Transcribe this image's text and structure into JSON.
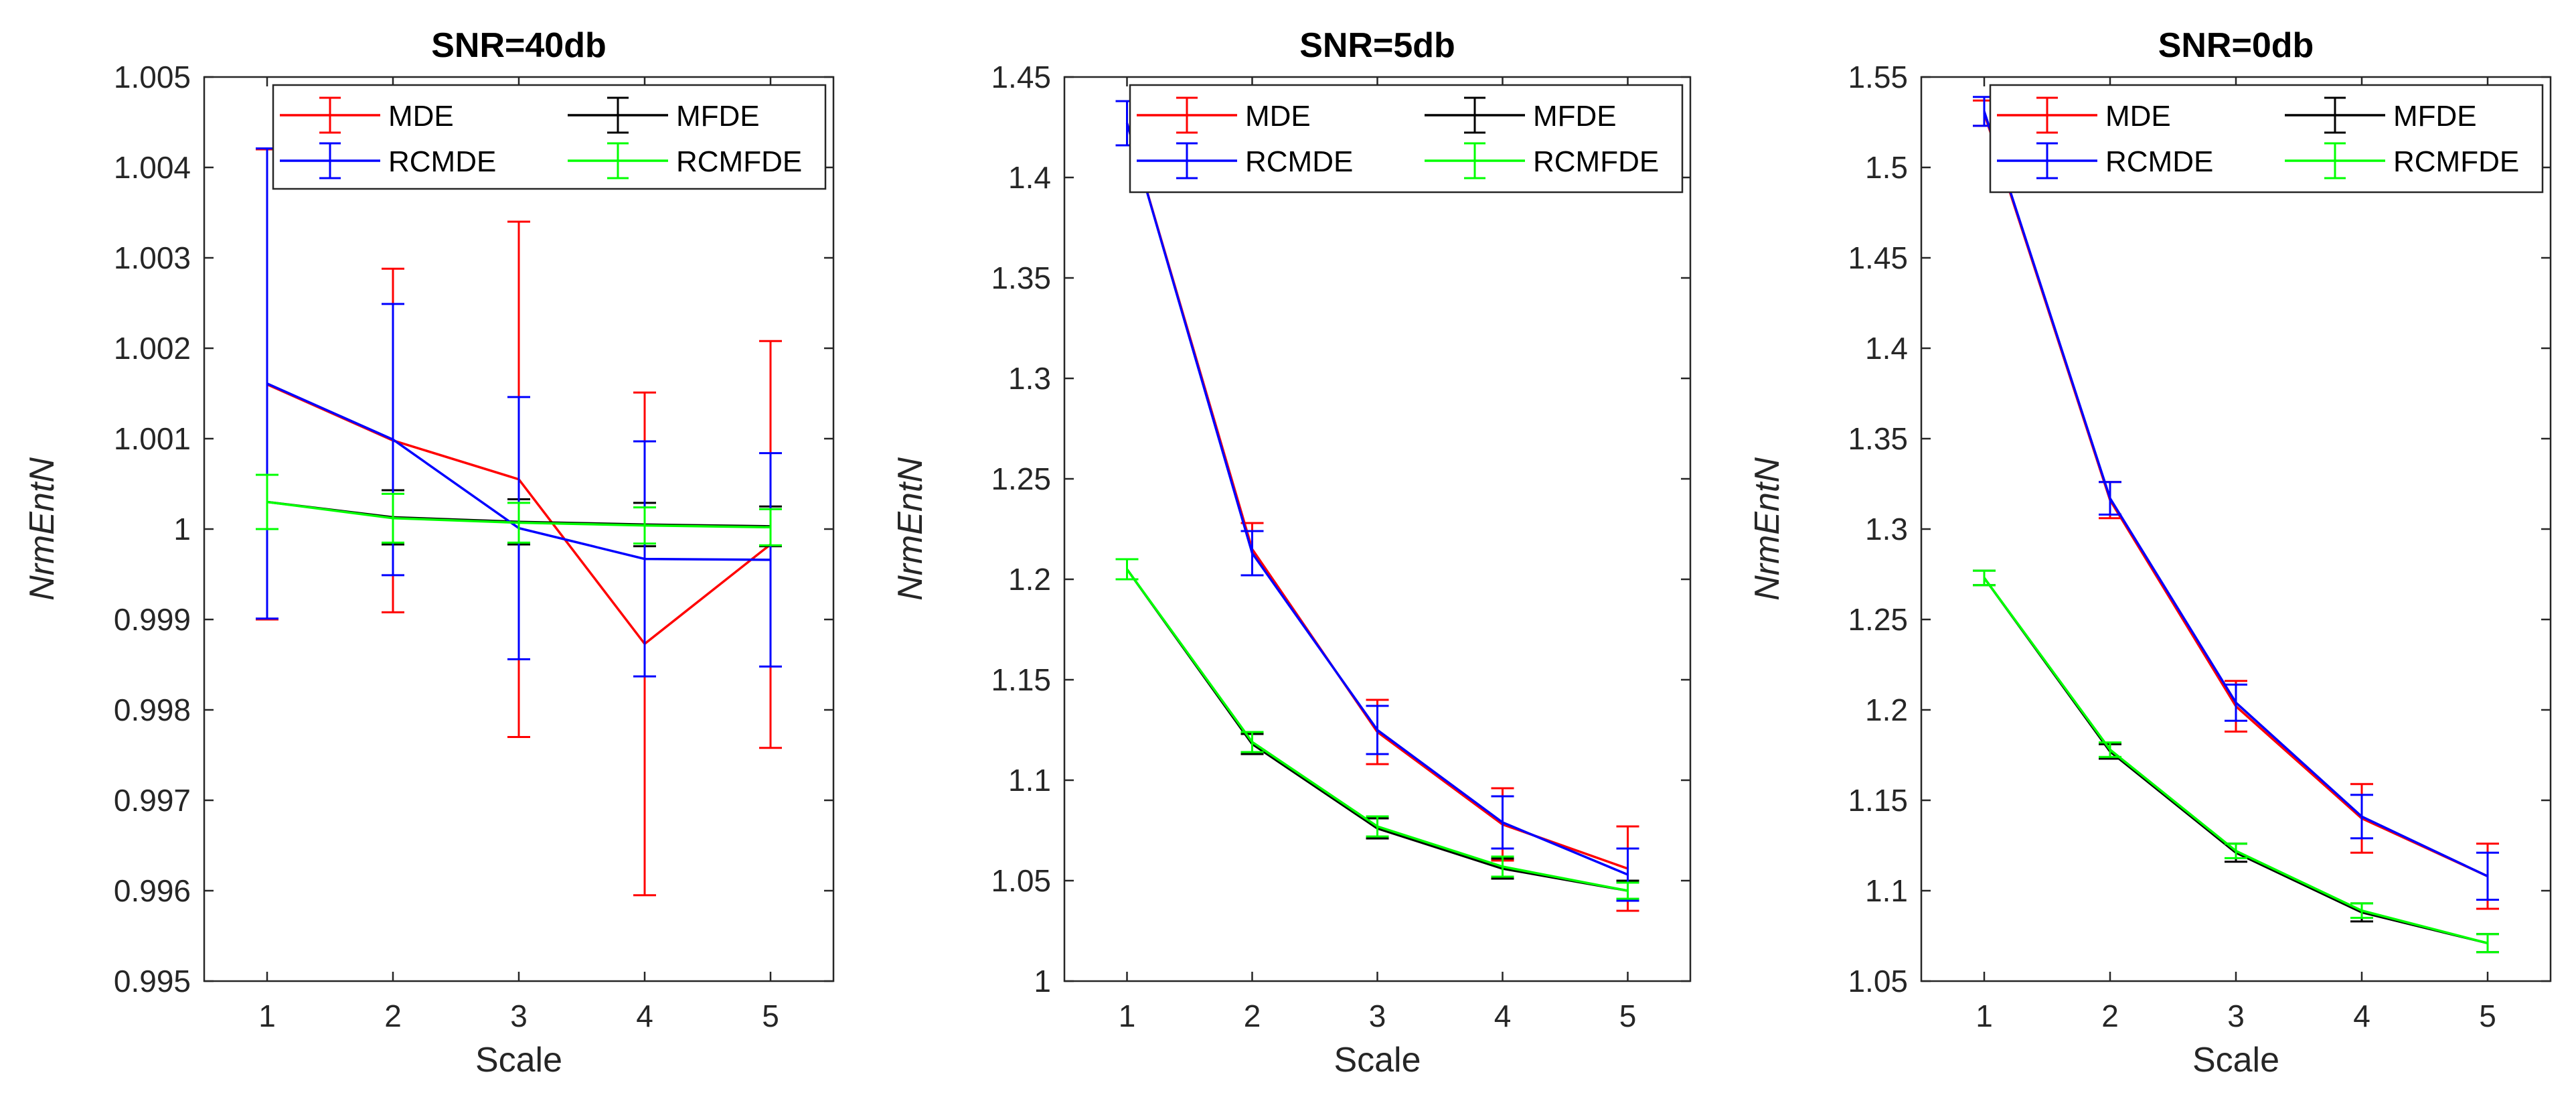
{
  "chart_data": [
    {
      "type": "line",
      "title": "SNR=40db",
      "xlabel": "Scale",
      "ylabel": "NrmEntN",
      "x": [
        1,
        2,
        3,
        4,
        5
      ],
      "xlim": [
        0.5,
        5.5
      ],
      "ylim": [
        0.995,
        1.005
      ],
      "yticks": [
        0.995,
        0.996,
        0.997,
        0.998,
        0.999,
        1,
        1.001,
        1.002,
        1.003,
        1.004,
        1.005
      ],
      "ytick_labels": [
        "0.995",
        "0.996",
        "0.997",
        "0.998",
        "0.999",
        "1",
        "1.001",
        "1.002",
        "1.003",
        "1.004",
        "1.005"
      ],
      "legend_position": "top-right",
      "series": [
        {
          "name": "MDE",
          "color": "#ff0000",
          "values": [
            1.0016,
            1.00098,
            1.00055,
            0.99873,
            0.99983
          ],
          "errors": [
            0.0026,
            0.0019,
            0.00285,
            0.00278,
            0.00225
          ]
        },
        {
          "name": "MFDE",
          "color": "#000000",
          "values": [
            1.0003,
            1.00013,
            1.00008,
            1.00005,
            1.00003
          ],
          "errors": [
            0.0003,
            0.0003,
            0.00025,
            0.00024,
            0.00022
          ]
        },
        {
          "name": "RCMDE",
          "color": "#0000ff",
          "values": [
            1.00161,
            1.00099,
            1.00001,
            0.99967,
            0.99966
          ],
          "errors": [
            0.0026,
            0.0015,
            0.00145,
            0.0013,
            0.00118
          ]
        },
        {
          "name": "RCMFDE",
          "color": "#00ff00",
          "values": [
            1.0003,
            1.00012,
            1.00007,
            1.00004,
            1.00002
          ],
          "errors": [
            0.0003,
            0.00027,
            0.00022,
            0.0002,
            0.0002
          ]
        }
      ]
    },
    {
      "type": "line",
      "title": "SNR=5db",
      "xlabel": "Scale",
      "ylabel": "NrmEntN",
      "x": [
        1,
        2,
        3,
        4,
        5
      ],
      "xlim": [
        0.5,
        5.5
      ],
      "ylim": [
        1,
        1.45
      ],
      "yticks": [
        1,
        1.05,
        1.1,
        1.15,
        1.2,
        1.25,
        1.3,
        1.35,
        1.4,
        1.45
      ],
      "ytick_labels": [
        "1",
        "1.05",
        "1.1",
        "1.15",
        "1.2",
        "1.25",
        "1.3",
        "1.35",
        "1.4",
        "1.45"
      ],
      "legend_position": "top-right",
      "series": [
        {
          "name": "MDE",
          "color": "#ff0000",
          "values": [
            1.427,
            1.215,
            1.124,
            1.078,
            1.056
          ],
          "errors": [
            0.011,
            0.013,
            0.016,
            0.018,
            0.021
          ]
        },
        {
          "name": "MFDE",
          "color": "#000000",
          "values": [
            1.205,
            1.118,
            1.076,
            1.056,
            1.045
          ],
          "errors": [
            0.005,
            0.005,
            0.005,
            0.005,
            0.005
          ]
        },
        {
          "name": "RCMDE",
          "color": "#0000ff",
          "values": [
            1.427,
            1.213,
            1.125,
            1.079,
            1.053
          ],
          "errors": [
            0.011,
            0.011,
            0.012,
            0.013,
            0.013
          ]
        },
        {
          "name": "RCMFDE",
          "color": "#00ff00",
          "values": [
            1.205,
            1.119,
            1.077,
            1.057,
            1.045
          ],
          "errors": [
            0.005,
            0.005,
            0.005,
            0.005,
            0.004
          ]
        }
      ]
    },
    {
      "type": "line",
      "title": "SNR=0db",
      "xlabel": "Scale",
      "ylabel": "NrmEntN",
      "x": [
        1,
        2,
        3,
        4,
        5
      ],
      "xlim": [
        0.5,
        5.5
      ],
      "ylim": [
        1.05,
        1.55
      ],
      "yticks": [
        1.05,
        1.1,
        1.15,
        1.2,
        1.25,
        1.3,
        1.35,
        1.4,
        1.45,
        1.5,
        1.55
      ],
      "ytick_labels": [
        "1.05",
        "1.1",
        "1.15",
        "1.2",
        "1.25",
        "1.3",
        "1.35",
        "1.4",
        "1.45",
        "1.5",
        "1.55"
      ],
      "legend_position": "top-right",
      "series": [
        {
          "name": "MDE",
          "color": "#ff0000",
          "values": [
            1.53,
            1.316,
            1.202,
            1.14,
            1.108
          ],
          "errors": [
            0.007,
            0.01,
            0.014,
            0.019,
            0.018
          ]
        },
        {
          "name": "MFDE",
          "color": "#000000",
          "values": [
            1.273,
            1.177,
            1.121,
            1.088,
            1.071
          ],
          "errors": [
            0.004,
            0.004,
            0.005,
            0.005,
            0.005
          ]
        },
        {
          "name": "RCMDE",
          "color": "#0000ff",
          "values": [
            1.531,
            1.317,
            1.204,
            1.141,
            1.108
          ],
          "errors": [
            0.008,
            0.009,
            0.01,
            0.012,
            0.013
          ]
        },
        {
          "name": "RCMFDE",
          "color": "#00ff00",
          "values": [
            1.273,
            1.178,
            1.122,
            1.089,
            1.071
          ],
          "errors": [
            0.004,
            0.004,
            0.004,
            0.004,
            0.005
          ]
        }
      ]
    }
  ]
}
